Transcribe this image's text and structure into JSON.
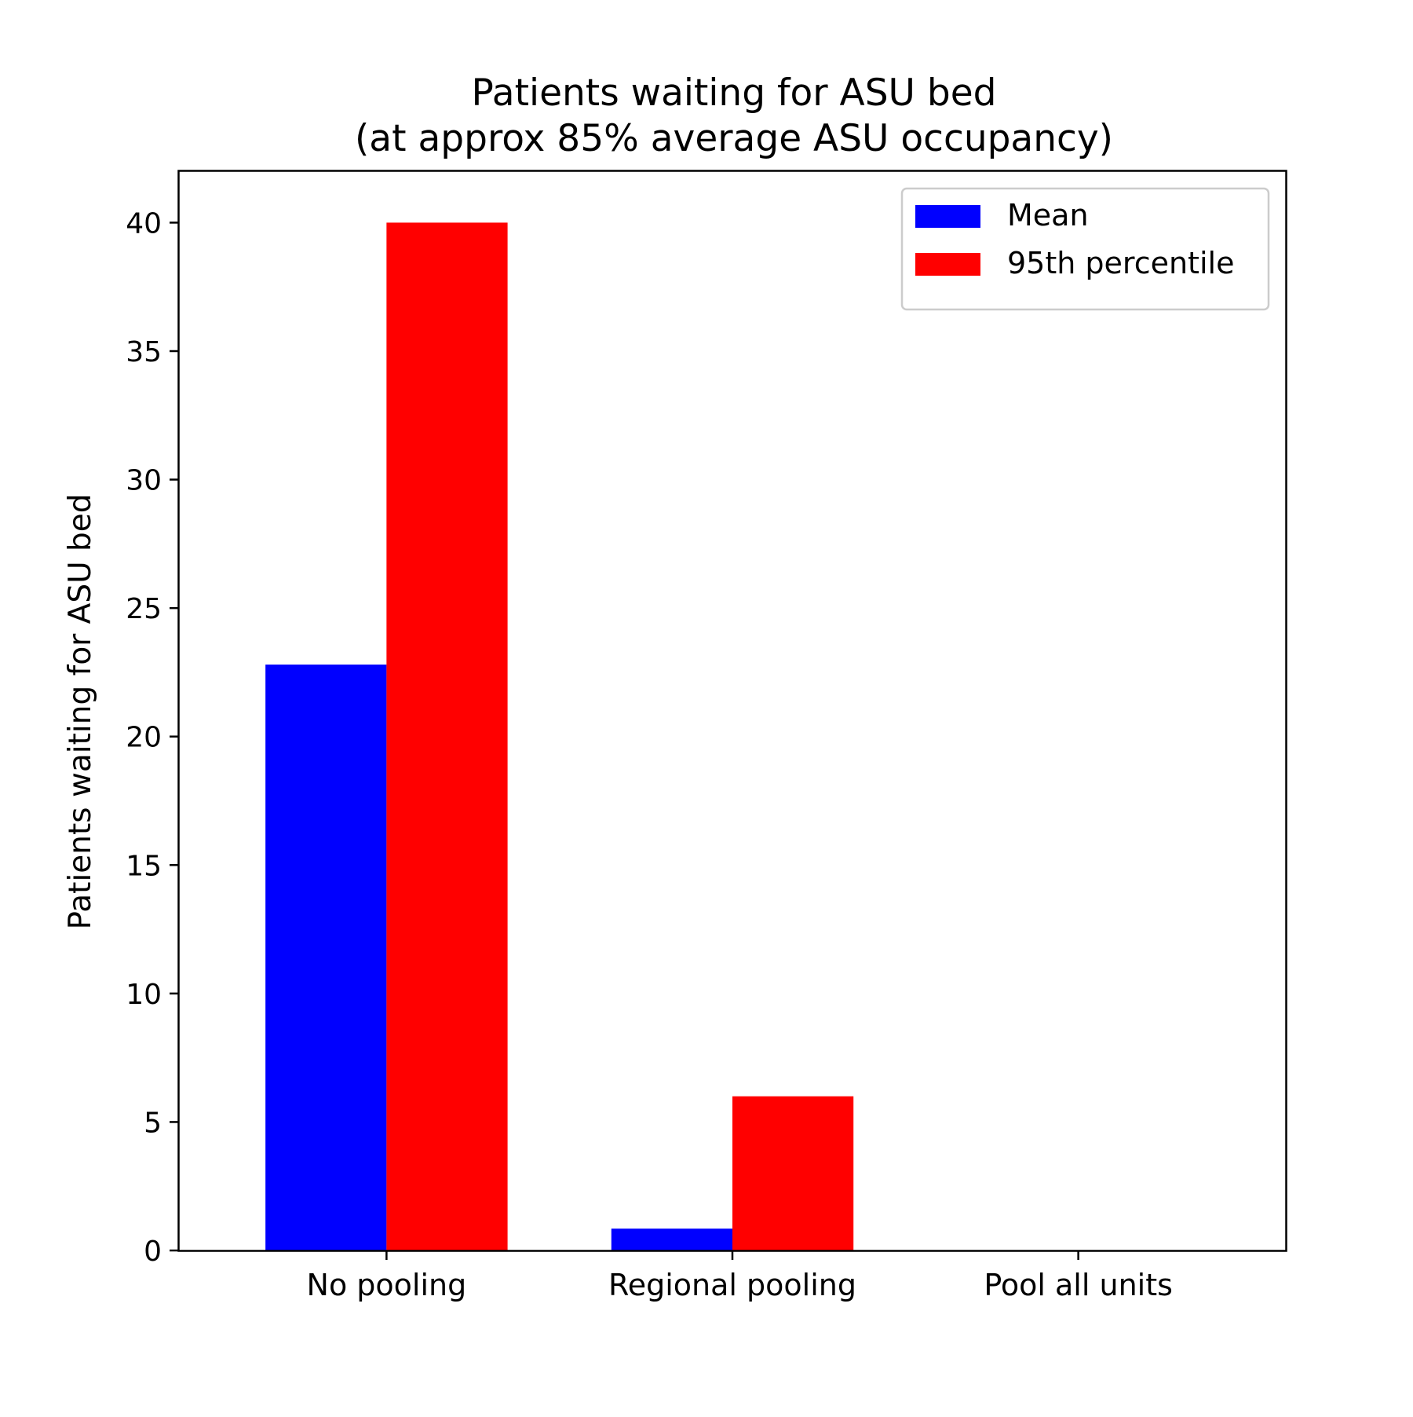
{
  "chart_data": {
    "type": "bar",
    "title": "Patients waiting for ASU bed",
    "subtitle": "(at approx 85% average ASU occupancy)",
    "xlabel": "",
    "ylabel": "Patients waiting for ASU bed",
    "categories": [
      "No pooling",
      "Regional pooling",
      "Pool all units"
    ],
    "series": [
      {
        "name": "Mean",
        "values": [
          22.8,
          0.85,
          0
        ],
        "color": "#0000ff"
      },
      {
        "name": "95th percentile",
        "values": [
          40,
          6,
          0
        ],
        "color": "#ff0000"
      }
    ],
    "ylim": [
      0,
      42
    ],
    "yticks": [
      0,
      5,
      10,
      15,
      20,
      25,
      30,
      35,
      40
    ],
    "grid": false,
    "legend_position": "top-right"
  }
}
